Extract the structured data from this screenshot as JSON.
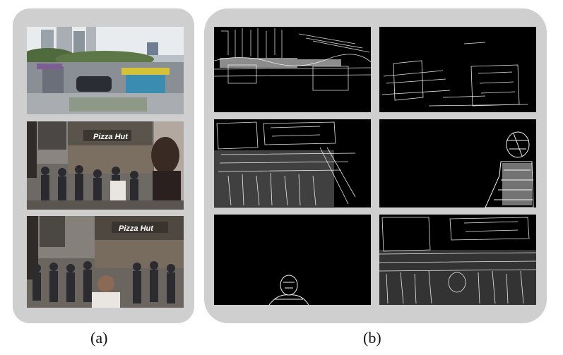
{
  "captions": {
    "a": "(a)",
    "b": "(b)"
  },
  "signs": {
    "pizza_hut_1": "Pizza Hut",
    "pizza_hut_2": "Pizza Hut"
  },
  "colors": {
    "panel_bg": "#cfcfcf",
    "map_bg": "#000000",
    "edge": "#ffffff",
    "sign_red": "#c8102e",
    "sign_yellow": "#f5c518"
  }
}
